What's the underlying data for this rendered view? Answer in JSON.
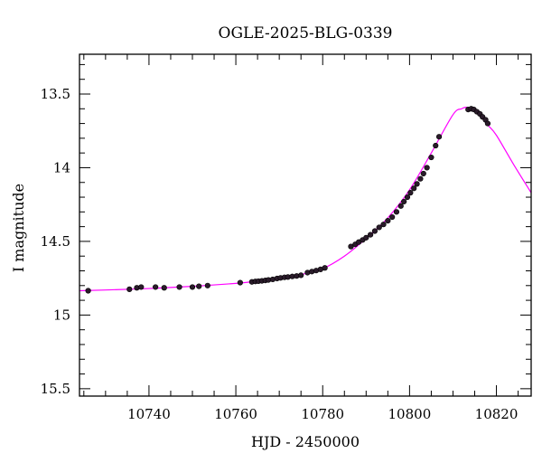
{
  "chart_data": {
    "type": "scatter",
    "title": "OGLE-2025-BLG-0339",
    "xlabel": "HJD - 2450000",
    "ylabel": "I magnitude",
    "xlim": [
      10724,
      10828
    ],
    "ylim": [
      15.55,
      13.23
    ],
    "y_inverted": true,
    "x_major_ticks": [
      10740,
      10760,
      10780,
      10800,
      10820
    ],
    "x_tick_labels": [
      "10740",
      "10760",
      "10780",
      "10800",
      "10820"
    ],
    "x_minor_step": 5,
    "y_major_ticks": [
      13.5,
      14,
      14.5,
      15,
      15.5
    ],
    "y_tick_labels": [
      "13.5",
      "14",
      "14.5",
      "15",
      "15.5"
    ],
    "y_minor_step": 0.1,
    "colors": {
      "points": "#2a1b2a",
      "model": "#ff00ff",
      "axes": "#000000"
    },
    "series": [
      {
        "name": "observations",
        "style": "points",
        "x": [
          10726.0,
          10735.5,
          10737.2,
          10738.2,
          10741.5,
          10743.5,
          10747.0,
          10750.0,
          10751.5,
          10753.5,
          10761.0,
          10763.7,
          10764.5,
          10765.2,
          10766.0,
          10766.8,
          10767.5,
          10768.5,
          10769.5,
          10770.3,
          10771.2,
          10772.0,
          10773.0,
          10774.0,
          10775.0,
          10776.5,
          10777.5,
          10778.5,
          10779.5,
          10780.5,
          10786.5,
          10787.5,
          10788.3,
          10789.2,
          10790.0,
          10791.0,
          10792.0,
          10793.0,
          10794.0,
          10795.0,
          10796.0,
          10797.0,
          10798.0,
          10798.7,
          10799.5,
          10800.2,
          10801.0,
          10801.7,
          10802.5,
          10803.2,
          10804.0,
          10805.0,
          10806.0,
          10806.8,
          10813.5,
          10814.2,
          10814.8,
          10815.5,
          10816.2,
          10816.8,
          10817.5,
          10818.0
        ],
        "y": [
          14.835,
          14.825,
          14.815,
          14.81,
          14.81,
          14.815,
          14.81,
          14.81,
          14.805,
          14.8,
          14.78,
          14.775,
          14.772,
          14.77,
          14.768,
          14.765,
          14.762,
          14.758,
          14.752,
          14.748,
          14.744,
          14.742,
          14.738,
          14.735,
          14.73,
          14.712,
          14.705,
          14.698,
          14.69,
          14.68,
          14.535,
          14.52,
          14.505,
          14.49,
          14.475,
          14.455,
          14.43,
          14.405,
          14.385,
          14.36,
          14.335,
          14.3,
          14.26,
          14.23,
          14.2,
          14.17,
          14.14,
          14.11,
          14.075,
          14.04,
          14.0,
          13.93,
          13.85,
          13.79,
          13.605,
          13.6,
          13.605,
          13.62,
          13.635,
          13.655,
          13.675,
          13.7
        ]
      },
      {
        "name": "model",
        "style": "line",
        "x": [
          10724,
          10730,
          10740,
          10750,
          10760,
          10765,
          10770,
          10775,
          10780,
          10785,
          10790,
          10795,
          10800,
          10805,
          10810,
          10812,
          10813,
          10814,
          10816,
          10818,
          10820,
          10824,
          10828
        ],
        "y": [
          14.835,
          14.83,
          14.82,
          14.805,
          14.785,
          14.77,
          14.752,
          14.725,
          14.685,
          14.6,
          14.48,
          14.34,
          14.15,
          13.9,
          13.64,
          13.6,
          13.59,
          13.6,
          13.64,
          13.71,
          13.78,
          13.98,
          14.17
        ]
      }
    ]
  }
}
